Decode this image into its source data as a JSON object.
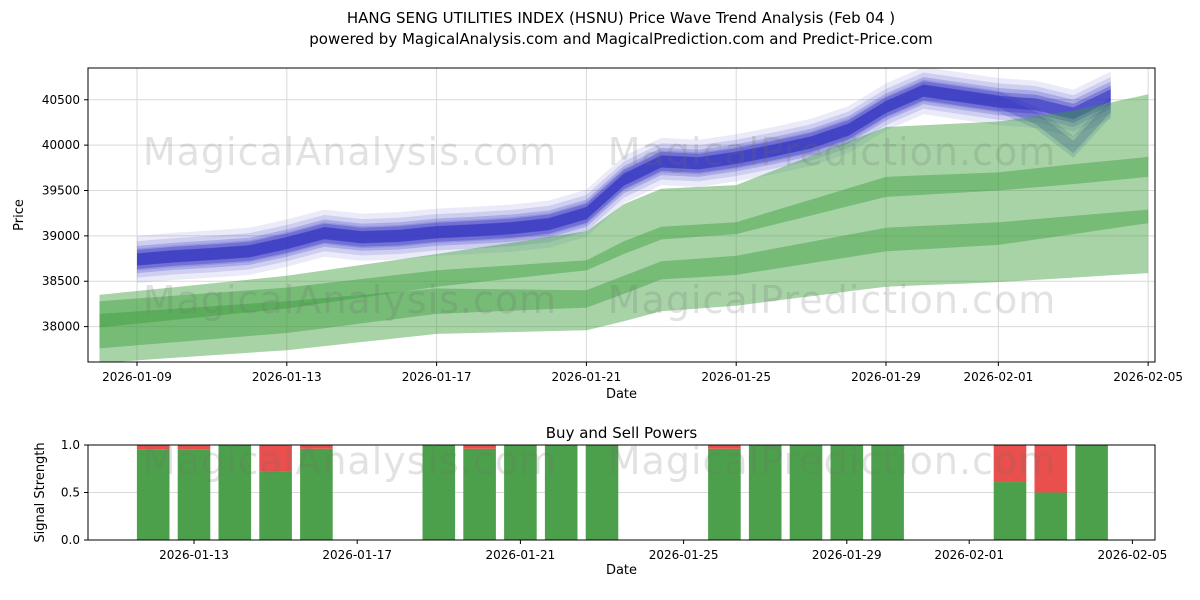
{
  "title": {
    "line1": "HANG SENG UTILITIES INDEX (HSNU) Price Wave Trend Analysis (Feb 04 )",
    "line2": "powered by MagicalAnalysis.com and MagicalPrediction.com and Predict-Price.com"
  },
  "watermarks": {
    "analysis": "MagicalAnalysis.com",
    "prediction": "MagicalPrediction.com"
  },
  "chart_data": [
    {
      "type": "area",
      "name": "price-wave-trend",
      "xlabel": "Date",
      "ylabel": "Price",
      "ylim": [
        37610,
        40850
      ],
      "yticks": [
        38000,
        38500,
        39000,
        39500,
        40000,
        40500
      ],
      "xticks": [
        "2026-01-09",
        "2026-01-13",
        "2026-01-17",
        "2026-01-21",
        "2026-01-25",
        "2026-01-29",
        "2026-02-01",
        "2026-02-05"
      ],
      "grid": true,
      "legend": "none",
      "dates": [
        "2026-01-08",
        "2026-01-09",
        "2026-01-10",
        "2026-01-11",
        "2026-01-12",
        "2026-01-13",
        "2026-01-14",
        "2026-01-15",
        "2026-01-16",
        "2026-01-17",
        "2026-01-18",
        "2026-01-19",
        "2026-01-20",
        "2026-01-21",
        "2026-01-22",
        "2026-01-23",
        "2026-01-24",
        "2026-01-25",
        "2026-01-26",
        "2026-01-27",
        "2026-01-28",
        "2026-01-29",
        "2026-01-30",
        "2026-01-31",
        "2026-02-01",
        "2026-02-02",
        "2026-02-03",
        "2026-02-04",
        "2026-02-05"
      ],
      "series": [
        {
          "name": "blue_wave_center",
          "values": [
            null,
            38740,
            38775,
            38800,
            38830,
            38920,
            39030,
            38985,
            39000,
            39040,
            39060,
            39085,
            39130,
            39250,
            39620,
            39820,
            39800,
            39860,
            39940,
            40030,
            40170,
            40420,
            40600,
            40540,
            40480,
            40450,
            40350,
            40550,
            null
          ]
        },
        {
          "name": "blue_wave_center_dip",
          "values": [
            null,
            38740,
            38775,
            38800,
            38830,
            38920,
            39030,
            38985,
            39000,
            39040,
            39060,
            39085,
            39130,
            39250,
            39620,
            39820,
            39800,
            39860,
            39940,
            40030,
            40170,
            40420,
            40600,
            40540,
            40480,
            40300,
            39980,
            40430,
            null
          ]
        },
        {
          "name": "green_band_upper_top",
          "values": [
            38350,
            38392,
            38434,
            38476,
            38518,
            38560,
            38620,
            38680,
            38740,
            38800,
            38863,
            38925,
            38988,
            39050,
            39350,
            39520,
            39540,
            39560,
            39720,
            39880,
            40040,
            40200,
            40220,
            40240,
            40260,
            40320,
            40380,
            40470,
            40560
          ]
        },
        {
          "name": "green_band_upper_bottom",
          "values": [
            37990,
            38032,
            38074,
            38116,
            38158,
            38200,
            38260,
            38320,
            38380,
            38440,
            38485,
            38530,
            38575,
            38620,
            38800,
            38960,
            38990,
            39020,
            39123,
            39225,
            39328,
            39430,
            39453,
            39477,
            39500,
            39535,
            39570,
            39610,
            39650
          ]
        },
        {
          "name": "green_band_middle_top",
          "values": [
            38280,
            38310,
            38340,
            38370,
            38400,
            38430,
            38478,
            38525,
            38573,
            38620,
            38648,
            38675,
            38703,
            38730,
            38940,
            39100,
            39125,
            39150,
            39275,
            39400,
            39525,
            39650,
            39667,
            39683,
            39700,
            39745,
            39790,
            39830,
            39870
          ]
        },
        {
          "name": "green_band_middle_bottom",
          "values": [
            37760,
            37794,
            37828,
            37862,
            37896,
            37930,
            37983,
            38035,
            38088,
            38140,
            38158,
            38175,
            38193,
            38210,
            38360,
            38520,
            38545,
            38570,
            38635,
            38700,
            38765,
            38830,
            38853,
            38877,
            38900,
            38960,
            39020,
            39080,
            39140
          ]
        },
        {
          "name": "green_band_lower_top",
          "values": [
            38140,
            38168,
            38196,
            38224,
            38252,
            38280,
            38315,
            38350,
            38385,
            38420,
            38415,
            38410,
            38405,
            38400,
            38560,
            38720,
            38750,
            38780,
            38858,
            38935,
            39013,
            39090,
            39110,
            39130,
            39150,
            39185,
            39220,
            39255,
            39290
          ]
        },
        {
          "name": "green_band_lower_bottom",
          "values": [
            37600,
            37628,
            37656,
            37684,
            37712,
            37740,
            37785,
            37830,
            37875,
            37920,
            37930,
            37940,
            37950,
            37960,
            38060,
            38170,
            38200,
            38230,
            38283,
            38335,
            38388,
            38440,
            38457,
            38473,
            38490,
            38515,
            38540,
            38565,
            38590
          ]
        }
      ],
      "colors": {
        "blue_wave": "#2d2dc0",
        "green_band": "#3c9e3c"
      }
    },
    {
      "type": "bar",
      "name": "buy-sell-powers",
      "title": "Buy and Sell Powers",
      "xlabel": "Date",
      "ylabel": "Signal Strength",
      "ylim": [
        0.0,
        1.0
      ],
      "yticks": [
        0.0,
        0.5,
        1.0
      ],
      "xticks": [
        "2026-01-13",
        "2026-01-17",
        "2026-01-21",
        "2026-01-25",
        "2026-01-29",
        "2026-02-01",
        "2026-02-05"
      ],
      "bars": [
        {
          "date": "2026-01-12",
          "buy": 0.95,
          "sell": 0.05
        },
        {
          "date": "2026-01-13",
          "buy": 0.95,
          "sell": 0.05
        },
        {
          "date": "2026-01-14",
          "buy": 1.0,
          "sell": 0.0
        },
        {
          "date": "2026-01-15",
          "buy": 0.72,
          "sell": 0.28
        },
        {
          "date": "2026-01-16",
          "buy": 0.96,
          "sell": 0.04
        },
        {
          "date": "2026-01-19",
          "buy": 1.0,
          "sell": 0.0
        },
        {
          "date": "2026-01-20",
          "buy": 0.96,
          "sell": 0.04
        },
        {
          "date": "2026-01-21",
          "buy": 1.0,
          "sell": 0.0
        },
        {
          "date": "2026-01-22",
          "buy": 1.0,
          "sell": 0.0
        },
        {
          "date": "2026-01-23",
          "buy": 1.0,
          "sell": 0.0
        },
        {
          "date": "2026-01-26",
          "buy": 0.96,
          "sell": 0.04
        },
        {
          "date": "2026-01-27",
          "buy": 1.0,
          "sell": 0.0
        },
        {
          "date": "2026-01-28",
          "buy": 1.0,
          "sell": 0.0
        },
        {
          "date": "2026-01-29",
          "buy": 1.0,
          "sell": 0.0
        },
        {
          "date": "2026-01-30",
          "buy": 1.0,
          "sell": 0.0
        },
        {
          "date": "2026-02-02",
          "buy": 0.61,
          "sell": 0.39
        },
        {
          "date": "2026-02-03",
          "buy": 0.5,
          "sell": 0.5
        },
        {
          "date": "2026-02-04",
          "buy": 1.0,
          "sell": 0.0
        }
      ],
      "colors": {
        "buy": "#4da04b",
        "sell": "#e94f4d"
      }
    }
  ]
}
